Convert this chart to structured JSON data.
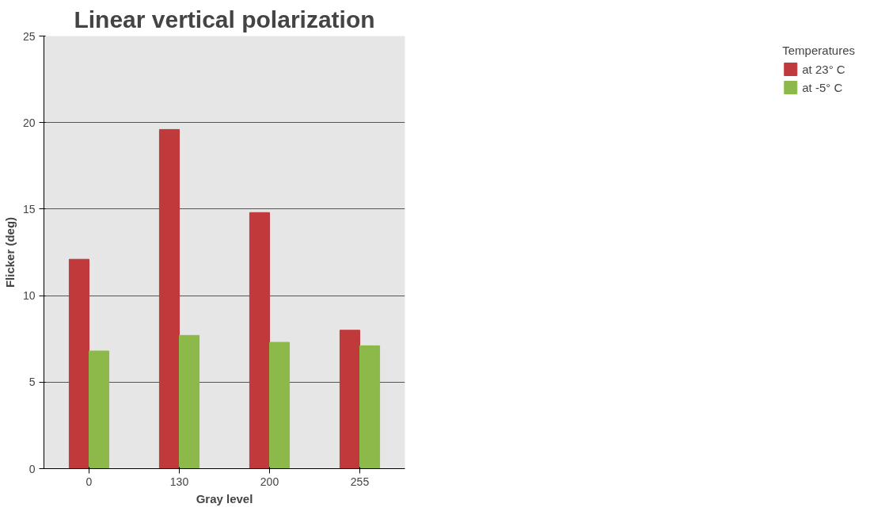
{
  "chart_data": {
    "type": "bar",
    "title": "Linear vertical polarization",
    "xlabel": "Gray level",
    "ylabel": "Flicker (deg)",
    "legend_title": "Temperatures",
    "categories": [
      "0",
      "130",
      "200",
      "255"
    ],
    "series": [
      {
        "name": "at 23° C",
        "color": "#c0393b",
        "values": [
          12.1,
          19.6,
          14.8,
          8.0
        ]
      },
      {
        "name": "at -5° C",
        "color": "#8db94a",
        "values": [
          6.8,
          7.7,
          7.3,
          7.1
        ]
      }
    ],
    "ylim": [
      0,
      25
    ],
    "yticks": [
      0,
      5,
      10,
      15,
      20,
      25
    ],
    "grid": "y",
    "legend": "right"
  }
}
